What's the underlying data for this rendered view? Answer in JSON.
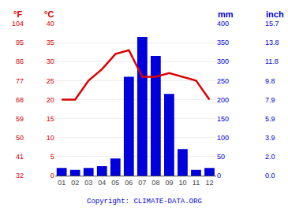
{
  "chart_data": {
    "type": "bar",
    "categories": [
      "01",
      "02",
      "03",
      "04",
      "05",
      "06",
      "07",
      "08",
      "09",
      "10",
      "11",
      "12"
    ],
    "series": [
      {
        "type": "bar",
        "color": "#0000dd",
        "axis": "y",
        "values": [
          20,
          15,
          20,
          25,
          45,
          260,
          365,
          315,
          215,
          70,
          15,
          20
        ]
      },
      {
        "type": "line",
        "color": "#dd0000",
        "axis": "y2",
        "values": [
          20,
          20,
          25,
          28,
          32,
          33,
          26,
          26,
          27,
          26,
          25,
          20
        ]
      }
    ],
    "ylabel": "mm",
    "ylim": [
      0,
      400
    ],
    "yticks": [
      0,
      50,
      100,
      150,
      200,
      250,
      300,
      350,
      400
    ],
    "y2label": "°C",
    "y2lim": [
      0,
      40
    ],
    "y2ticks": [
      0,
      5,
      10,
      15,
      20,
      25,
      30,
      35,
      40
    ],
    "y3label": "°F",
    "y3lim": [
      32,
      104
    ],
    "y3ticks": [
      32,
      41,
      50,
      59,
      68,
      77,
      86,
      95,
      104
    ],
    "y4label": "inch",
    "y4lim": [
      0,
      400
    ],
    "y4ticks": [
      {
        "value": 0,
        "label": "0.0"
      },
      {
        "value": 50,
        "label": "2.0"
      },
      {
        "value": 100,
        "label": "3.9"
      },
      {
        "value": 150,
        "label": "5.9"
      },
      {
        "value": 200,
        "label": "7.9"
      },
      {
        "value": 250,
        "label": "9.8"
      },
      {
        "value": 300,
        "label": "11.8"
      },
      {
        "value": 350,
        "label": "13.8"
      },
      {
        "value": 400,
        "label": "15.7"
      }
    ],
    "grid": true,
    "annotations": [
      {
        "text": "Copyright: CLIMATE-DATA.ORG"
      }
    ]
  }
}
